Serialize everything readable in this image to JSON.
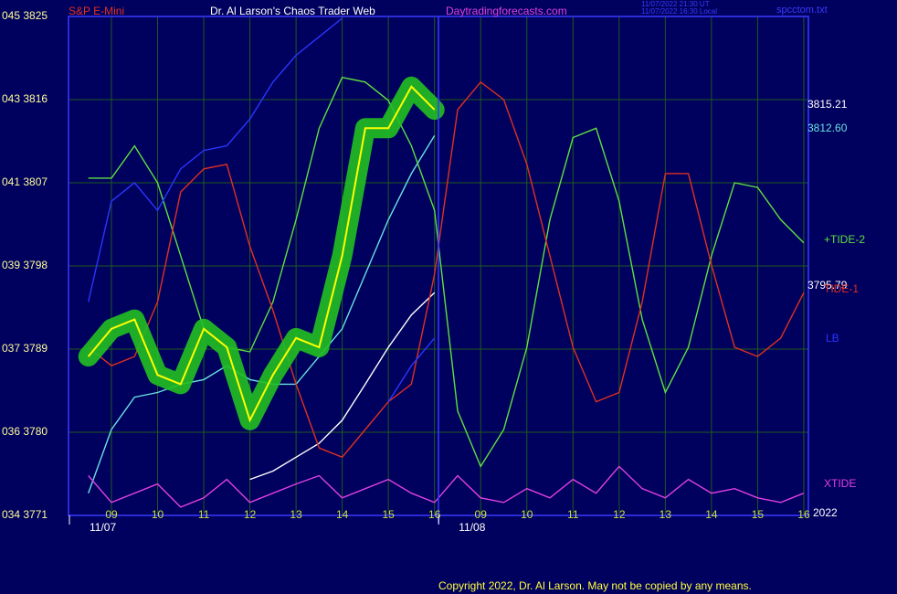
{
  "chart_data": {
    "type": "line",
    "title": "Dr. Al Larson's Chaos Trader Web",
    "subtitle": "S&P E-Mini",
    "site": "Daytradingforecasts.com",
    "file_label": "spcctom.txt",
    "timestamps": [
      "11/07/2022 21:30 UT",
      "11/07/2022 16:30 Local"
    ],
    "footer": "Copyright 2022, Dr. Al Larson. May not be copied by any means.",
    "dates": [
      {
        "x": 1,
        "label": "11/07"
      },
      {
        "x": 9,
        "label": "11/08"
      }
    ],
    "year_label": "2022",
    "right_labels": [
      "3815.21",
      "3812.60",
      "3795.79"
    ],
    "x": [
      0.5,
      1,
      1.5,
      2,
      2.5,
      3,
      3.5,
      4,
      4.5,
      5,
      5.5,
      6,
      6.5,
      7,
      7.5,
      8,
      8.5,
      9,
      9.5,
      10,
      10.5,
      11,
      11.5,
      12,
      12.5,
      13,
      13.5,
      14,
      14.5,
      15,
      15.5,
      16
    ],
    "xlim": [
      0.07,
      16.1
    ],
    "xticks": [
      {
        "value": 1,
        "label": "09"
      },
      {
        "value": 2,
        "label": "10"
      },
      {
        "value": 3,
        "label": "11"
      },
      {
        "value": 4,
        "label": "12"
      },
      {
        "value": 5,
        "label": "13"
      },
      {
        "value": 6,
        "label": "14"
      },
      {
        "value": 7,
        "label": "15"
      },
      {
        "value": 8,
        "label": "16"
      },
      {
        "value": 9,
        "label": "09"
      },
      {
        "value": 10,
        "label": "10"
      },
      {
        "value": 11,
        "label": "11"
      },
      {
        "value": 12,
        "label": "12"
      },
      {
        "value": 13,
        "label": "13"
      },
      {
        "value": 14,
        "label": "14"
      },
      {
        "value": 15,
        "label": "15"
      },
      {
        "value": 16,
        "label": "16"
      }
    ],
    "ylim": [
      3771,
      3825
    ],
    "yticks": [
      {
        "value": 3771,
        "label": "034 3771"
      },
      {
        "value": 3780,
        "label": "036 3780"
      },
      {
        "value": 3789,
        "label": "037 3789"
      },
      {
        "value": 3798,
        "label": "039 3798"
      },
      {
        "value": 3807,
        "label": "041 3807"
      },
      {
        "value": 3816,
        "label": "043 3816"
      },
      {
        "value": 3825,
        "label": "045 3825"
      }
    ],
    "grid": true,
    "series": [
      {
        "color": "#6ae0e0",
        "values": [
          3773.4,
          3780.3,
          3783.8,
          3784.3,
          3785.2,
          3785.7,
          3787.2,
          3785.7,
          3785.2,
          3785.2,
          3788.2,
          3791.2,
          3797.1,
          3803.0,
          3808.0,
          3812.1,
          null,
          null,
          null,
          null,
          null,
          null,
          null,
          null,
          null,
          null,
          null,
          null,
          null,
          null,
          null,
          null
        ]
      },
      {
        "color": "#ffffff",
        "values": [
          null,
          null,
          null,
          null,
          null,
          null,
          null,
          3774.9,
          3775.8,
          3777.3,
          3778.8,
          3781.3,
          3785.2,
          3789.2,
          3792.7,
          3795.1,
          null,
          null,
          null,
          null,
          null,
          null,
          null,
          null,
          null,
          null,
          null,
          null,
          null,
          null,
          null,
          null
        ]
      },
      {
        "name": "+TIDE-2",
        "color": "#5ee040",
        "values": [
          3807.5,
          3807.5,
          3811.0,
          3807.0,
          3799.1,
          3791.2,
          3789.2,
          3788.7,
          3794.1,
          3803.0,
          3812.9,
          3818.4,
          3817.9,
          3815.9,
          3811.0,
          3804.0,
          3782.3,
          3776.3,
          3780.3,
          3789.2,
          3803.0,
          3811.9,
          3812.9,
          3805.0,
          3792.2,
          3784.3,
          3789.2,
          3799.1,
          3807.0,
          3806.5,
          3803.0,
          3800.5
        ]
      },
      {
        "name": "TIDE-1",
        "color": "#e03020",
        "values": [
          3789.2,
          3787.2,
          3788.2,
          3794.1,
          3806.0,
          3808.5,
          3809.0,
          3800.1,
          3793.2,
          3785.2,
          3778.3,
          3777.3,
          3780.3,
          3783.3,
          3785.2,
          3797.1,
          3814.9,
          3817.9,
          3816.0,
          3809.0,
          3799.1,
          3789.2,
          3783.3,
          3784.3,
          3794.1,
          3808.0,
          3808.0,
          3798.1,
          3789.2,
          3788.2,
          3790.2,
          3795.1
        ]
      },
      {
        "name": "LB",
        "color": "#2a36ff",
        "values": [
          3794.1,
          3805.0,
          3807.0,
          3804.0,
          3808.5,
          3810.5,
          3811.0,
          3813.9,
          3817.9,
          3820.8,
          3822.8,
          3824.8,
          null,
          3783.3,
          3787.2,
          3790.2,
          null,
          null,
          null,
          null,
          null,
          null,
          null,
          null,
          null,
          null,
          null,
          null,
          null,
          null,
          null,
          null
        ]
      },
      {
        "name": "XTIDE",
        "color": "#e040e0",
        "values": [
          3775.3,
          3772.4,
          3773.4,
          3774.4,
          3771.9,
          3772.9,
          3774.9,
          3772.4,
          3773.4,
          3774.4,
          3775.3,
          3772.9,
          3773.9,
          3774.9,
          3773.4,
          3772.4,
          3775.3,
          3772.9,
          3772.4,
          3773.9,
          3772.9,
          3774.9,
          3773.4,
          3776.3,
          3773.9,
          3772.9,
          3774.9,
          3773.4,
          3773.9,
          3772.9,
          3772.4,
          3773.4
        ]
      },
      {
        "color": "#ffff00",
        "halo": "#22c022",
        "values": [
          3788.2,
          3791.2,
          3792.2,
          3786.2,
          3785.2,
          3791.2,
          3789.2,
          3781.3,
          3786.2,
          3790.2,
          3789.2,
          3799.1,
          3812.9,
          3812.9,
          3817.4,
          3814.9,
          null,
          null,
          null,
          null,
          null,
          null,
          null,
          null,
          null,
          null,
          null,
          null,
          null,
          null,
          null,
          null
        ]
      }
    ]
  }
}
